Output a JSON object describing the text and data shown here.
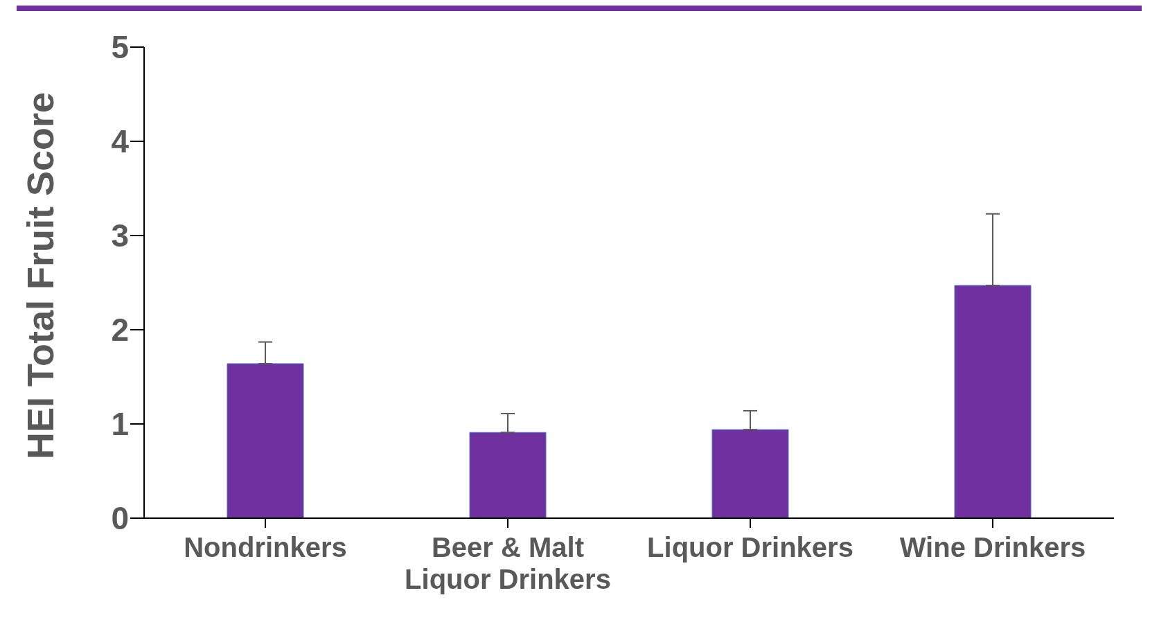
{
  "chart_data": {
    "type": "bar",
    "ylabel": "HEI Total Fruit Score",
    "categories": [
      "Nondrinkers",
      "Beer & Malt Liquor Drinkers",
      "Liquor Drinkers",
      "Wine Drinkers"
    ],
    "values": [
      1.64,
      0.91,
      0.94,
      2.47
    ],
    "errors": [
      [
        1.64,
        1.87
      ],
      [
        0.91,
        1.11
      ],
      [
        0.94,
        1.14
      ],
      [
        2.47,
        3.23
      ]
    ],
    "color": "#7030a0",
    "ylim": [
      0,
      5
    ],
    "yticks": [
      0,
      1,
      2,
      3,
      4,
      5
    ],
    "grid": false,
    "legend": false
  }
}
